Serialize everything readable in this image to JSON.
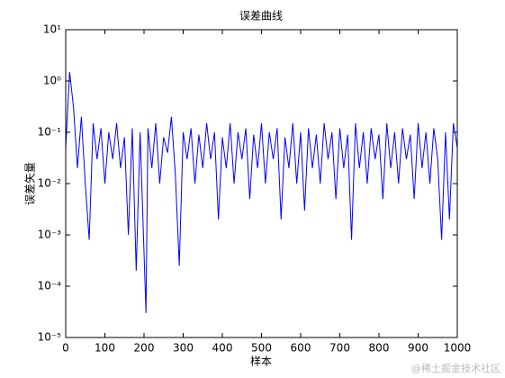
{
  "chart_data": {
    "type": "line",
    "title": "误差曲线",
    "xlabel": "样本",
    "ylabel": "误差矢量",
    "xlim": [
      0,
      1000
    ],
    "xticks": [
      0,
      100,
      200,
      300,
      400,
      500,
      600,
      700,
      800,
      900,
      1000
    ],
    "ylim": [
      1e-05,
      10
    ],
    "ylog": true,
    "yticks": [
      {
        "value": 1e-05,
        "label": "10⁻⁵"
      },
      {
        "value": 0.0001,
        "label": "10⁻⁴"
      },
      {
        "value": 0.001,
        "label": "10⁻³"
      },
      {
        "value": 0.01,
        "label": "10⁻²"
      },
      {
        "value": 0.1,
        "label": "10⁻¹"
      },
      {
        "value": 1,
        "label": "10⁰"
      },
      {
        "value": 10,
        "label": "10¹"
      }
    ],
    "color": "#0000ff",
    "x": [
      0,
      10,
      20,
      30,
      40,
      50,
      60,
      70,
      80,
      90,
      100,
      110,
      120,
      130,
      140,
      150,
      160,
      170,
      180,
      190,
      205,
      210,
      220,
      230,
      240,
      250,
      260,
      270,
      280,
      290,
      300,
      310,
      320,
      330,
      340,
      350,
      360,
      370,
      380,
      390,
      400,
      410,
      420,
      430,
      440,
      450,
      460,
      470,
      480,
      490,
      500,
      510,
      520,
      530,
      540,
      550,
      560,
      570,
      580,
      590,
      600,
      610,
      620,
      630,
      640,
      650,
      660,
      670,
      680,
      690,
      700,
      710,
      720,
      730,
      740,
      750,
      760,
      770,
      780,
      790,
      800,
      810,
      820,
      830,
      840,
      850,
      860,
      870,
      880,
      890,
      900,
      910,
      920,
      930,
      940,
      950,
      960,
      970,
      980,
      990,
      1000
    ],
    "values": [
      0.05,
      1.5,
      0.3,
      0.02,
      0.2,
      0.01,
      0.0008,
      0.15,
      0.03,
      0.12,
      0.01,
      0.1,
      0.03,
      0.15,
      0.02,
      0.08,
      0.001,
      0.12,
      0.0002,
      0.1,
      3e-05,
      0.12,
      0.02,
      0.15,
      0.01,
      0.08,
      0.04,
      0.2,
      0.015,
      0.00025,
      0.1,
      0.03,
      0.12,
      0.01,
      0.09,
      0.02,
      0.15,
      0.03,
      0.1,
      0.002,
      0.08,
      0.02,
      0.15,
      0.01,
      0.1,
      0.03,
      0.12,
      0.005,
      0.09,
      0.02,
      0.15,
      0.01,
      0.1,
      0.03,
      0.12,
      0.002,
      0.08,
      0.02,
      0.15,
      0.01,
      0.1,
      0.003,
      0.12,
      0.02,
      0.09,
      0.01,
      0.15,
      0.03,
      0.1,
      0.005,
      0.12,
      0.02,
      0.09,
      0.0008,
      0.15,
      0.02,
      0.1,
      0.01,
      0.12,
      0.03,
      0.09,
      0.005,
      0.15,
      0.02,
      0.1,
      0.01,
      0.12,
      0.03,
      0.09,
      0.005,
      0.15,
      0.02,
      0.1,
      0.01,
      0.12,
      0.03,
      0.0008,
      0.1,
      0.002,
      0.15,
      0.05
    ]
  },
  "watermark": "@稀土掘金技术社区"
}
